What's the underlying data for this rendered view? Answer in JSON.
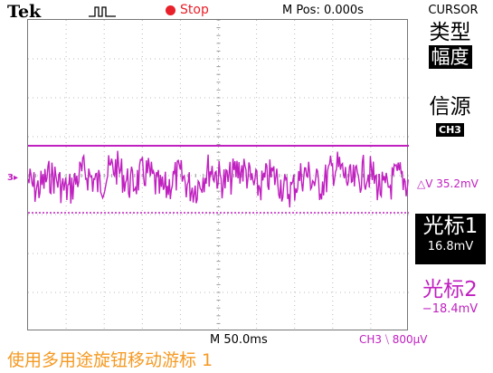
{
  "header": {
    "brand": "Tek",
    "status": "Stop",
    "horizontal_position": "M Pos: 0.000s",
    "menu_title": "CURSOR"
  },
  "channel_marker": "3",
  "side_menu": {
    "type_label": "类型",
    "type_value": "幅度",
    "source_label": "信源",
    "source_value": "CH3",
    "delta_value": "△V 35.2mV",
    "cursor1_label": "光标1",
    "cursor1_value": "16.8mV",
    "cursor2_label": "光标2",
    "cursor2_value": "−18.4mV"
  },
  "footer": {
    "timebase": "M 50.0ms",
    "trigger": "CH3 ⧹ 800µV",
    "help_text": "使用多用途旋钮移动游标 1"
  },
  "colors": {
    "trace": "#c020c0",
    "status": "#e8202a",
    "help": "#f59a23"
  }
}
